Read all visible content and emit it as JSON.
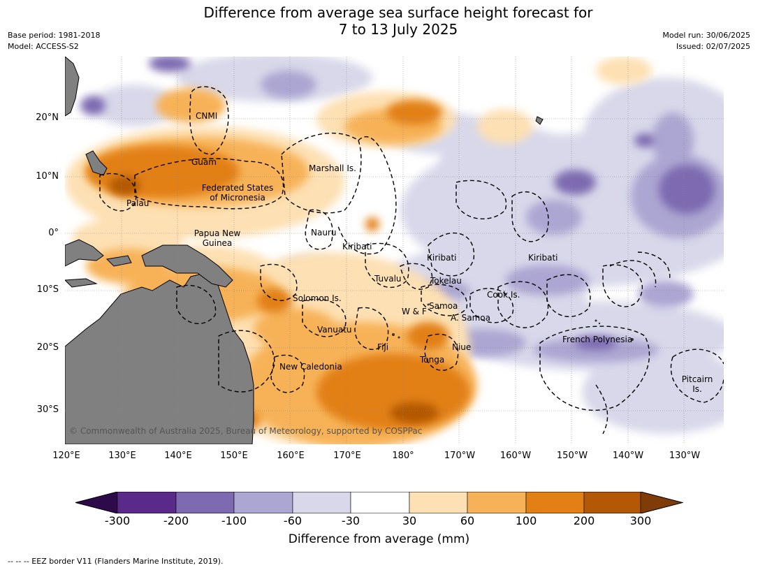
{
  "title": {
    "line1": "Difference from average sea surface height forecast for",
    "line2": "7 to 13 July 2025"
  },
  "meta_left": {
    "base_period": "Base period: 1981-2018",
    "model": "Model: ACCESS-S2"
  },
  "meta_right": {
    "model_run": "Model run: 30/06/2025",
    "issued": "Issued: 02/07/2025"
  },
  "latitude_labels": [
    "20°N",
    "10°N",
    "0°",
    "10°S",
    "20°S",
    "30°S"
  ],
  "longitude_labels": [
    "120°E",
    "130°E",
    "140°E",
    "150°E",
    "160°E",
    "170°E",
    "180°",
    "170°W",
    "160°W",
    "150°W",
    "140°W",
    "130°W"
  ],
  "places": {
    "cnmi": "CNMI",
    "guam": "Guam",
    "marshall": "Marshall Is.",
    "fsm_line1": "Federated States",
    "fsm_line2": "of Micronesia",
    "palau": "Palau",
    "png_line1": "Papua New",
    "png_line2": "Guinea",
    "nauru": "Nauru",
    "kiribati_w": "Kiribati",
    "kiribati_c": "Kiribati",
    "kiribati_e": "Kiribati",
    "tuvalu": "Tuvalu",
    "tokelau": "Tokelau",
    "cook": "Cook Is.",
    "solomon": "Solomon Is.",
    "samoa": "Samoa",
    "wf": "W & F",
    "asamoa": "A. Samoa",
    "vanuatu": "Vanuatu",
    "fiji": "Fiji",
    "niue": "Niue",
    "tonga": "Tonga",
    "french_polynesia": "French Polynesia",
    "new_caledonia": "New Caledonia",
    "pitcairn_line1": "Pitcairn",
    "pitcairn_line2": "Is."
  },
  "copyright": "© Commonwealth of Australia 2025, Bureau of Meteorology, supported by COSPPac",
  "colorbar": {
    "ticks": [
      "-300",
      "-200",
      "-100",
      "-60",
      "-30",
      "30",
      "60",
      "100",
      "200",
      "300"
    ],
    "colors": {
      "below_min": "#2d0a4a",
      "b1": "#5a2a8a",
      "b2": "#7d6ab0",
      "b3": "#aca6d2",
      "b4": "#d8d8ea",
      "b5": "#ffffff",
      "b6": "#fde0b3",
      "b7": "#f7b259",
      "b8": "#e28016",
      "b9": "#b35806",
      "above_max": "#7f3b08"
    },
    "label": "Difference from average (mm)"
  },
  "footnote": "--  --  -- EEZ border V11 (Flanders Marine Institute, 2019)."
}
